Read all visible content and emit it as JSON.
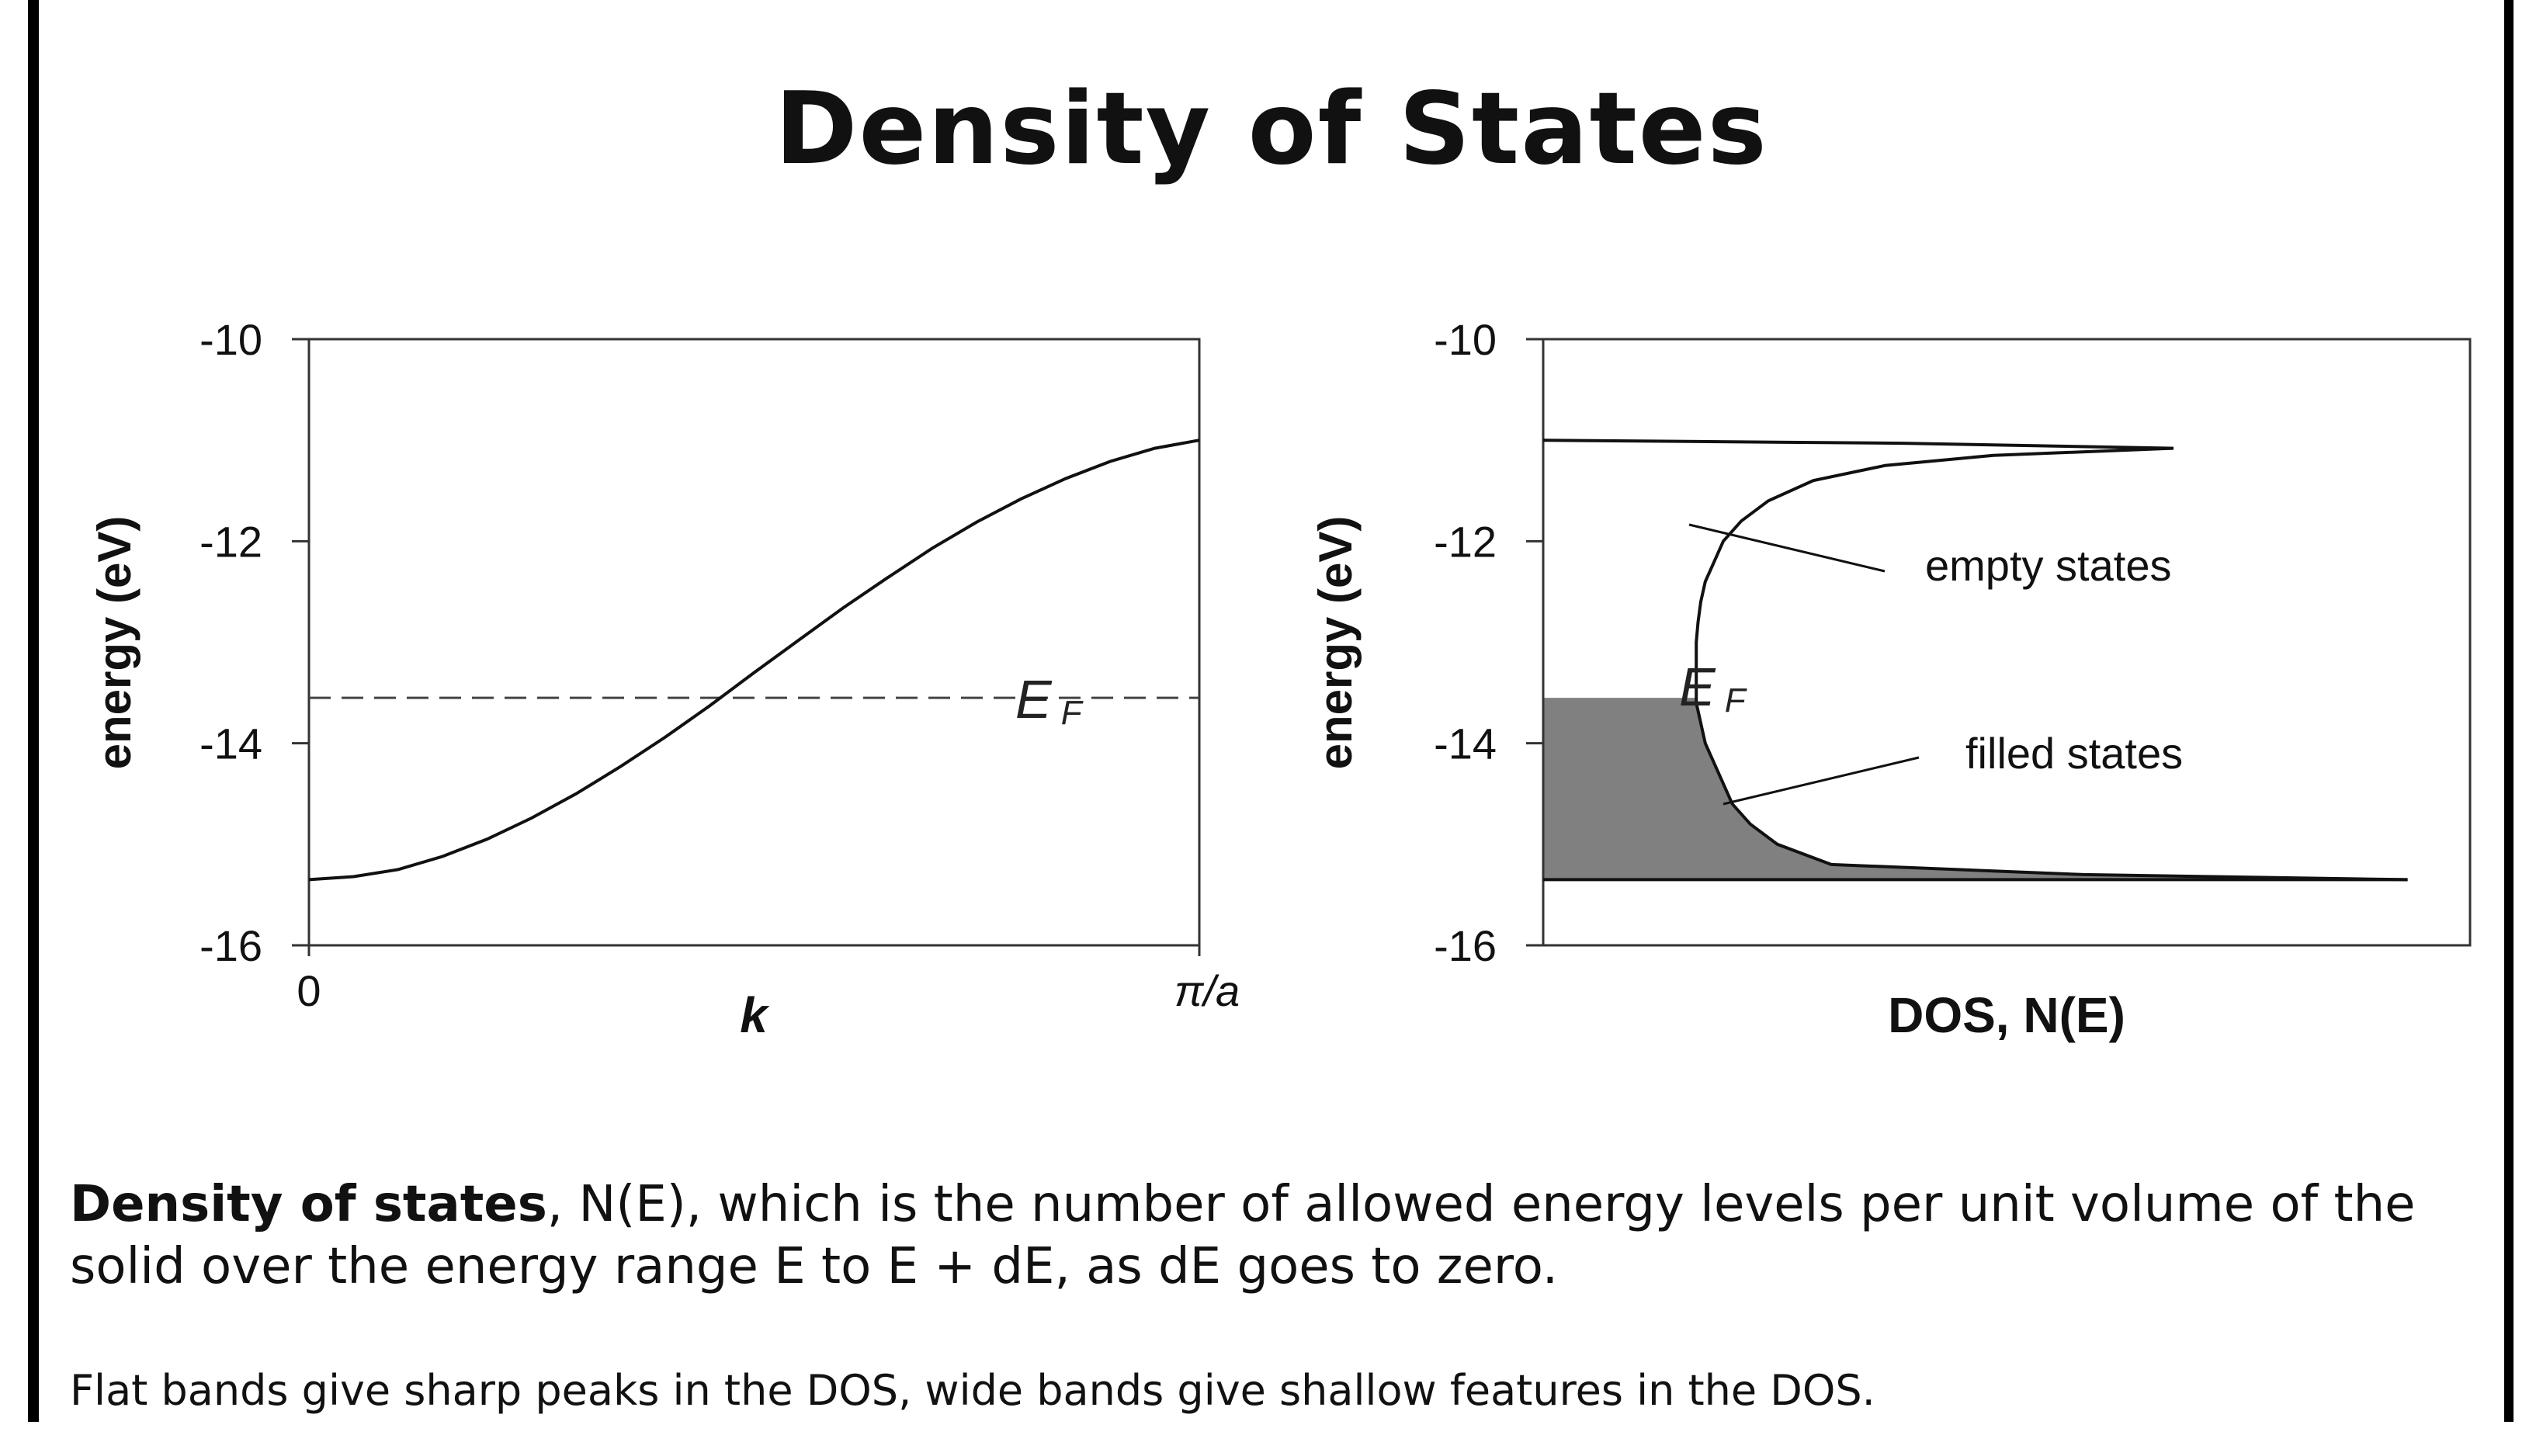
{
  "slide": {
    "title": "Density of States",
    "paragraph_1": {
      "bold_lead": "Density of states",
      "rest": ", N(E), which is the number of allowed energy levels per unit volume of the solid over the energy range E to E + dE, as dE goes to zero."
    },
    "paragraph_2": "Flat bands give sharp peaks in the DOS, wide bands give shallow features in the DOS."
  },
  "chart_data": [
    {
      "type": "line",
      "xlabel": "k",
      "ylabel": "energy (eV)",
      "ylim": [
        -16,
        -10
      ],
      "y_ticks": [
        "-10",
        "-12",
        "-14",
        "-16"
      ],
      "x_ticks": [
        "0",
        "π/a"
      ],
      "x": [
        0,
        0.05,
        0.1,
        0.15,
        0.2,
        0.25,
        0.3,
        0.35,
        0.4,
        0.45,
        0.5,
        0.55,
        0.6,
        0.65,
        0.7,
        0.75,
        0.8,
        0.85,
        0.9,
        0.95,
        1.0
      ],
      "y": [
        -15.35,
        -15.32,
        -15.25,
        -15.12,
        -14.95,
        -14.74,
        -14.5,
        -14.23,
        -13.94,
        -13.63,
        -13.3,
        -12.98,
        -12.66,
        -12.36,
        -12.07,
        -11.81,
        -11.58,
        -11.38,
        -11.21,
        -11.08,
        -11.0
      ],
      "fermi_level": -13.55,
      "fermi_label": "E",
      "fermi_sub": "F",
      "grid": false
    },
    {
      "type": "area",
      "xlabel": "DOS, N(E)",
      "ylabel": "energy (eV)",
      "ylim": [
        -16,
        -10
      ],
      "y_ticks": [
        "-10",
        "-12",
        "-14",
        "-16"
      ],
      "energy": [
        -15.35,
        -15.3,
        -15.2,
        -15.0,
        -14.8,
        -14.6,
        -14.4,
        -14.2,
        -14.0,
        -13.8,
        -13.6,
        -13.4,
        -13.2,
        -13.0,
        -12.8,
        -12.6,
        -12.4,
        -12.2,
        -12.0,
        -11.8,
        -11.6,
        -11.4,
        -11.25,
        -11.15,
        -11.08,
        -11.03,
        -11.0
      ],
      "dos": [
        0.96,
        0.6,
        0.32,
        0.26,
        0.23,
        0.21,
        0.2,
        0.19,
        0.18,
        0.175,
        0.17,
        0.17,
        0.17,
        0.17,
        0.172,
        0.175,
        0.18,
        0.19,
        0.2,
        0.22,
        0.25,
        0.3,
        0.38,
        0.5,
        0.7,
        0.4,
        0.0
      ],
      "upper_band_edge": -11.0,
      "lower_band_edge": -15.35,
      "fermi_level": -13.55,
      "fermi_label": "E",
      "fermi_sub": "F",
      "annotations": [
        "empty states",
        "filled states"
      ],
      "fill_color": "#808080",
      "grid": false
    }
  ]
}
